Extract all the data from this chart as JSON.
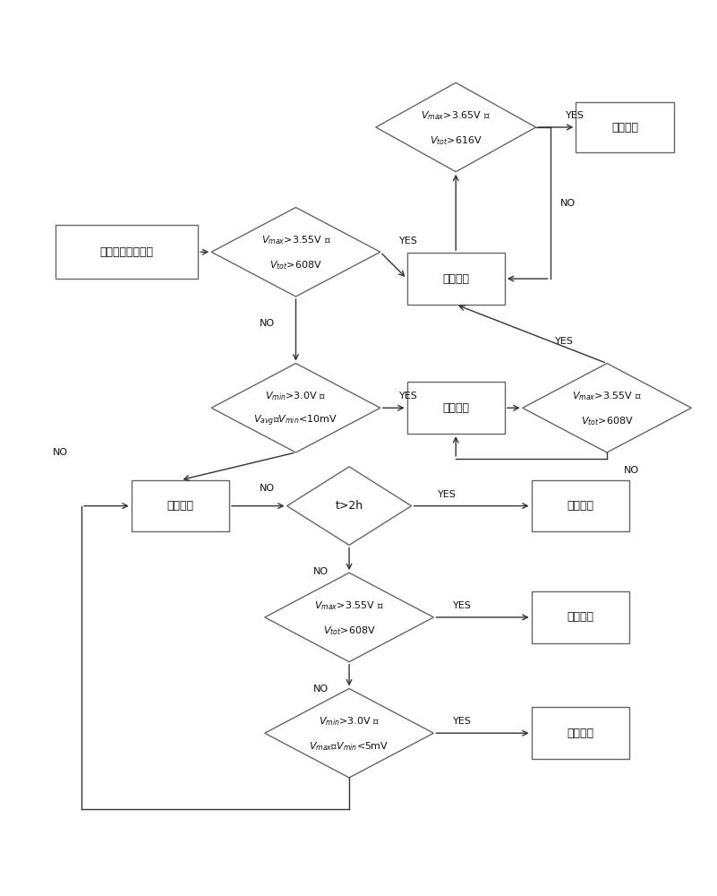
{
  "fig_width": 8.01,
  "fig_height": 10.0,
  "bg_color": "#ffffff",
  "box_edge_color": "#666666",
  "box_color": "#ffffff",
  "text_color": "#111111",
  "font_size": 9,
  "small_font_size": 8,
  "collect_label": "采集电池单体电压",
  "stop_label": "充电停止",
  "stage1_label": "第一阶段",
  "stage2_label": "第二阶段",
  "stage3_label": "第三阶段",
  "dtop_l1": "$V_{max}$>3.65V 或",
  "dtop_l2": "$V_{tot}$>616V",
  "dmid1_l1": "$V_{max}$>3.55V 或",
  "dmid1_l2": "$V_{tot}$>608V",
  "dmid2_l1": "$V_{min}$>3.0V 并",
  "dmid2_l2": "$V_{avg}$－$V_{min}$<10mV",
  "dt2h_l1": "t>2h",
  "d355b_l1": "$V_{max}$>3.55V 或",
  "d355b_l2": "$V_{tot}$>608V",
  "d30b_l1": "$V_{min}$>3.0V 并",
  "d30b_l2": "$V_{max}$－$V_{min}$<5mV",
  "d355r_l1": "$V_{max}$>3.55V 或",
  "d355r_l2": "$V_{tot}$>608V"
}
